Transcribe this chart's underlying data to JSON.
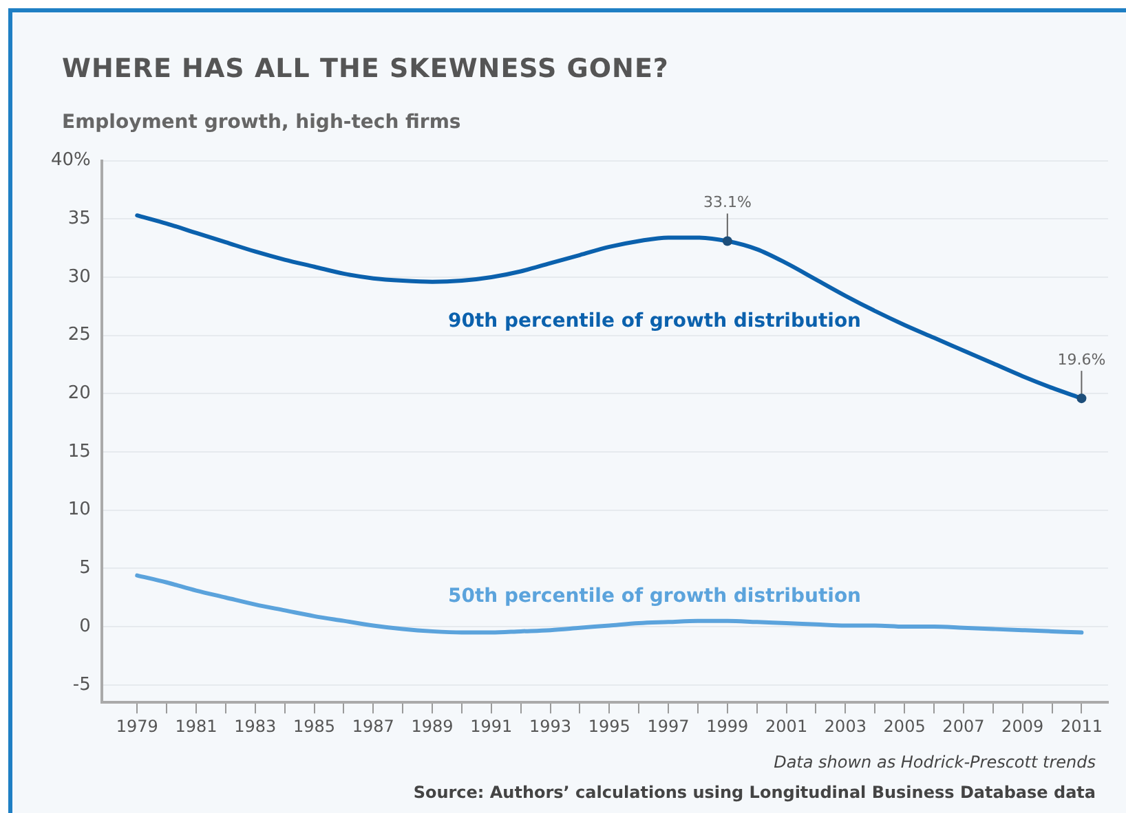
{
  "chart_data": {
    "type": "line",
    "title": "WHERE HAS ALL THE SKEWNESS GONE?",
    "subtitle": "Employment growth, high-tech firms",
    "x": [
      1979,
      1980,
      1981,
      1982,
      1983,
      1984,
      1985,
      1986,
      1987,
      1988,
      1989,
      1990,
      1991,
      1992,
      1993,
      1994,
      1995,
      1996,
      1997,
      1998,
      1999,
      2000,
      2001,
      2002,
      2003,
      2004,
      2005,
      2006,
      2007,
      2008,
      2009,
      2010,
      2011
    ],
    "series": [
      {
        "name": "90th percentile of growth distribution",
        "color": "#0b61ad",
        "values": [
          35.3,
          34.6,
          33.8,
          33.0,
          32.2,
          31.5,
          30.9,
          30.3,
          29.9,
          29.7,
          29.6,
          29.7,
          30.0,
          30.5,
          31.2,
          31.9,
          32.6,
          33.1,
          33.4,
          33.4,
          33.1,
          32.4,
          31.2,
          29.8,
          28.4,
          27.1,
          25.9,
          24.8,
          23.7,
          22.6,
          21.5,
          20.5,
          19.6
        ]
      },
      {
        "name": "50th percentile of growth distribution",
        "color": "#5ba3dc",
        "values": [
          4.4,
          3.8,
          3.1,
          2.5,
          1.9,
          1.4,
          0.9,
          0.5,
          0.1,
          -0.2,
          -0.4,
          -0.5,
          -0.5,
          -0.4,
          -0.3,
          -0.1,
          0.1,
          0.3,
          0.4,
          0.5,
          0.5,
          0.4,
          0.3,
          0.2,
          0.1,
          0.1,
          0.0,
          0.0,
          -0.1,
          -0.2,
          -0.3,
          -0.4,
          -0.5
        ]
      }
    ],
    "xlim": [
      1977.8,
      2011.9
    ],
    "xticks": [
      1979,
      {
        "value": 1980,
        "label": null
      },
      1981,
      {
        "value": 1982,
        "label": null
      },
      1983,
      {
        "value": 1984,
        "label": null
      },
      1985,
      {
        "value": 1986,
        "label": null
      },
      1987,
      {
        "value": 1988,
        "label": null
      },
      1989,
      {
        "value": 1990,
        "label": null
      },
      1991,
      {
        "value": 1992,
        "label": null
      },
      1993,
      {
        "value": 1994,
        "label": null
      },
      1995,
      {
        "value": 1996,
        "label": null
      },
      1997,
      {
        "value": 1998,
        "label": null
      },
      1999,
      {
        "value": 2000,
        "label": null
      },
      2001,
      {
        "value": 2002,
        "label": null
      },
      2003,
      {
        "value": 2004,
        "label": null
      },
      2005,
      {
        "value": 2006,
        "label": null
      },
      2007,
      {
        "value": 2008,
        "label": null
      },
      2009,
      {
        "value": 2010,
        "label": null
      },
      2011
    ],
    "ylim": [
      -6.5,
      40
    ],
    "yticks": [
      -5,
      0,
      5,
      10,
      15,
      20,
      25,
      30,
      35,
      {
        "value": 40,
        "label": "40%"
      }
    ],
    "grid": "y",
    "marker": "none",
    "line_style": "solid",
    "legend": false,
    "annotations": [
      {
        "text": "33.1%",
        "x": 1999,
        "y": 33.1
      },
      {
        "text": "19.6%",
        "x": 2011,
        "y": 19.6
      },
      "Data shown as Hodrick-Prescott trends",
      "Source: Authors’ calculations using Longitudinal Business Database data"
    ]
  }
}
